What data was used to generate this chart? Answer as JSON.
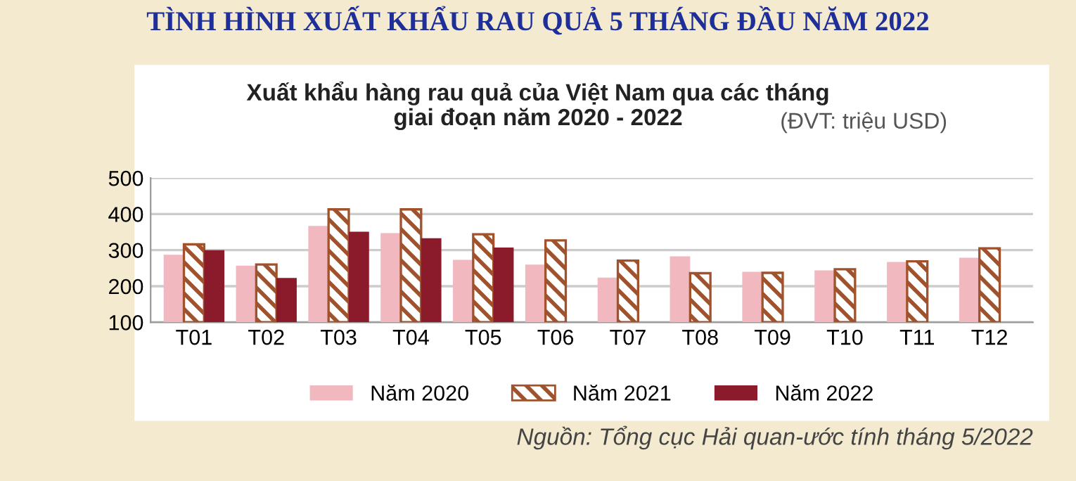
{
  "chart_data": {
    "type": "bar",
    "title": "TÌNH HÌNH XUẤT KHẨU RAU QUẢ 5 THÁNG ĐẦU NĂM 2022",
    "subtitle": "Xuất khẩu hàng rau quả của Việt Nam qua các tháng\ngiai đoạn năm 2020 - 2022",
    "annotations": [
      "(ĐVT: triệu USD)",
      "Nguồn: Tổng cục Hải quan-ước tính tháng 5/2022"
    ],
    "categories": [
      "T01",
      "T02",
      "T03",
      "T04",
      "T05",
      "T06",
      "T07",
      "T08",
      "T09",
      "T10",
      "T11",
      "T12"
    ],
    "series": [
      {
        "name": "Năm 2020",
        "color": "#f2b8c0",
        "values": [
          287,
          257,
          367,
          347,
          273,
          260,
          224,
          283,
          240,
          244,
          267,
          279
        ]
      },
      {
        "name": "Năm 2021",
        "color": "#a0522d",
        "values": [
          316,
          260,
          413,
          413,
          344,
          327,
          271,
          236,
          237,
          247,
          269,
          305
        ]
      },
      {
        "name": "Năm 2022",
        "color": "#8b1a2b",
        "values": [
          300,
          223,
          351,
          333,
          307,
          null,
          null,
          null,
          null,
          null,
          null,
          null
        ]
      }
    ],
    "ylim": [
      100,
      500
    ],
    "yticks": [
      100,
      200,
      300,
      400,
      500
    ],
    "grid": "y",
    "legend": "bottom"
  }
}
